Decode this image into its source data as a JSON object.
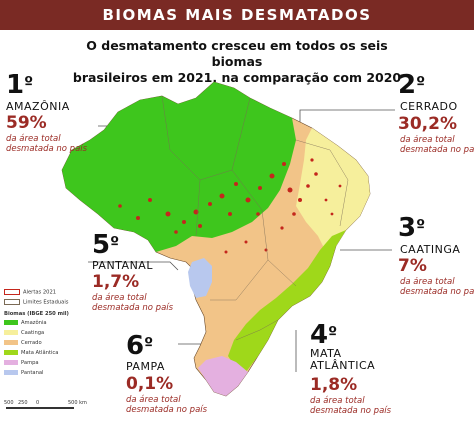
{
  "header": {
    "title": "BIOMAS MAIS DESMATADOS"
  },
  "subtitle": {
    "line1": "O desmatamento cresceu em todos os seis biomas",
    "line2": "brasileiros em 2021, na comparação com 2020"
  },
  "desc_text": {
    "line1": "da área total",
    "line2": "desmatada no país"
  },
  "rankings": [
    {
      "rank": "1",
      "suffix": "º",
      "biome": "AMAZÔNIA",
      "percent": "59%"
    },
    {
      "rank": "2",
      "suffix": "º",
      "biome": "CERRADO",
      "percent": "30,2%"
    },
    {
      "rank": "3",
      "suffix": "º",
      "biome": "CAATINGA",
      "percent": "7%"
    },
    {
      "rank": "4",
      "suffix": "º",
      "biome": "MATA ATLÂNTICA",
      "biome_line1": "MATA",
      "biome_line2": "ATLÂNTICA",
      "percent": "1,8%"
    },
    {
      "rank": "5",
      "suffix": "º",
      "biome": "PANTANAL",
      "percent": "1,7%"
    },
    {
      "rank": "6",
      "suffix": "º",
      "biome": "PAMPA",
      "percent": "0,1%"
    }
  ],
  "legend": {
    "alerts": "Alertas 2021",
    "limits": "Limites Estaduais",
    "title": "Biomas (IBGE 250 mil)",
    "items": [
      {
        "label": "Amazônia",
        "color": "#3ec61d"
      },
      {
        "label": "Caatinga",
        "color": "#f6ef9c"
      },
      {
        "label": "Cerrado",
        "color": "#f2c488"
      },
      {
        "label": "Mata Atlântica",
        "color": "#9fd81a"
      },
      {
        "label": "Pampa",
        "color": "#e4b0e0"
      },
      {
        "label": "Pantanal",
        "color": "#b8c8ee"
      }
    ]
  },
  "scale": {
    "ticks": [
      "500",
      "250",
      "0",
      "500 km"
    ]
  },
  "colors": {
    "header": "#7a2a24",
    "accent": "#9b2b25",
    "alerts": "#c4261c"
  }
}
